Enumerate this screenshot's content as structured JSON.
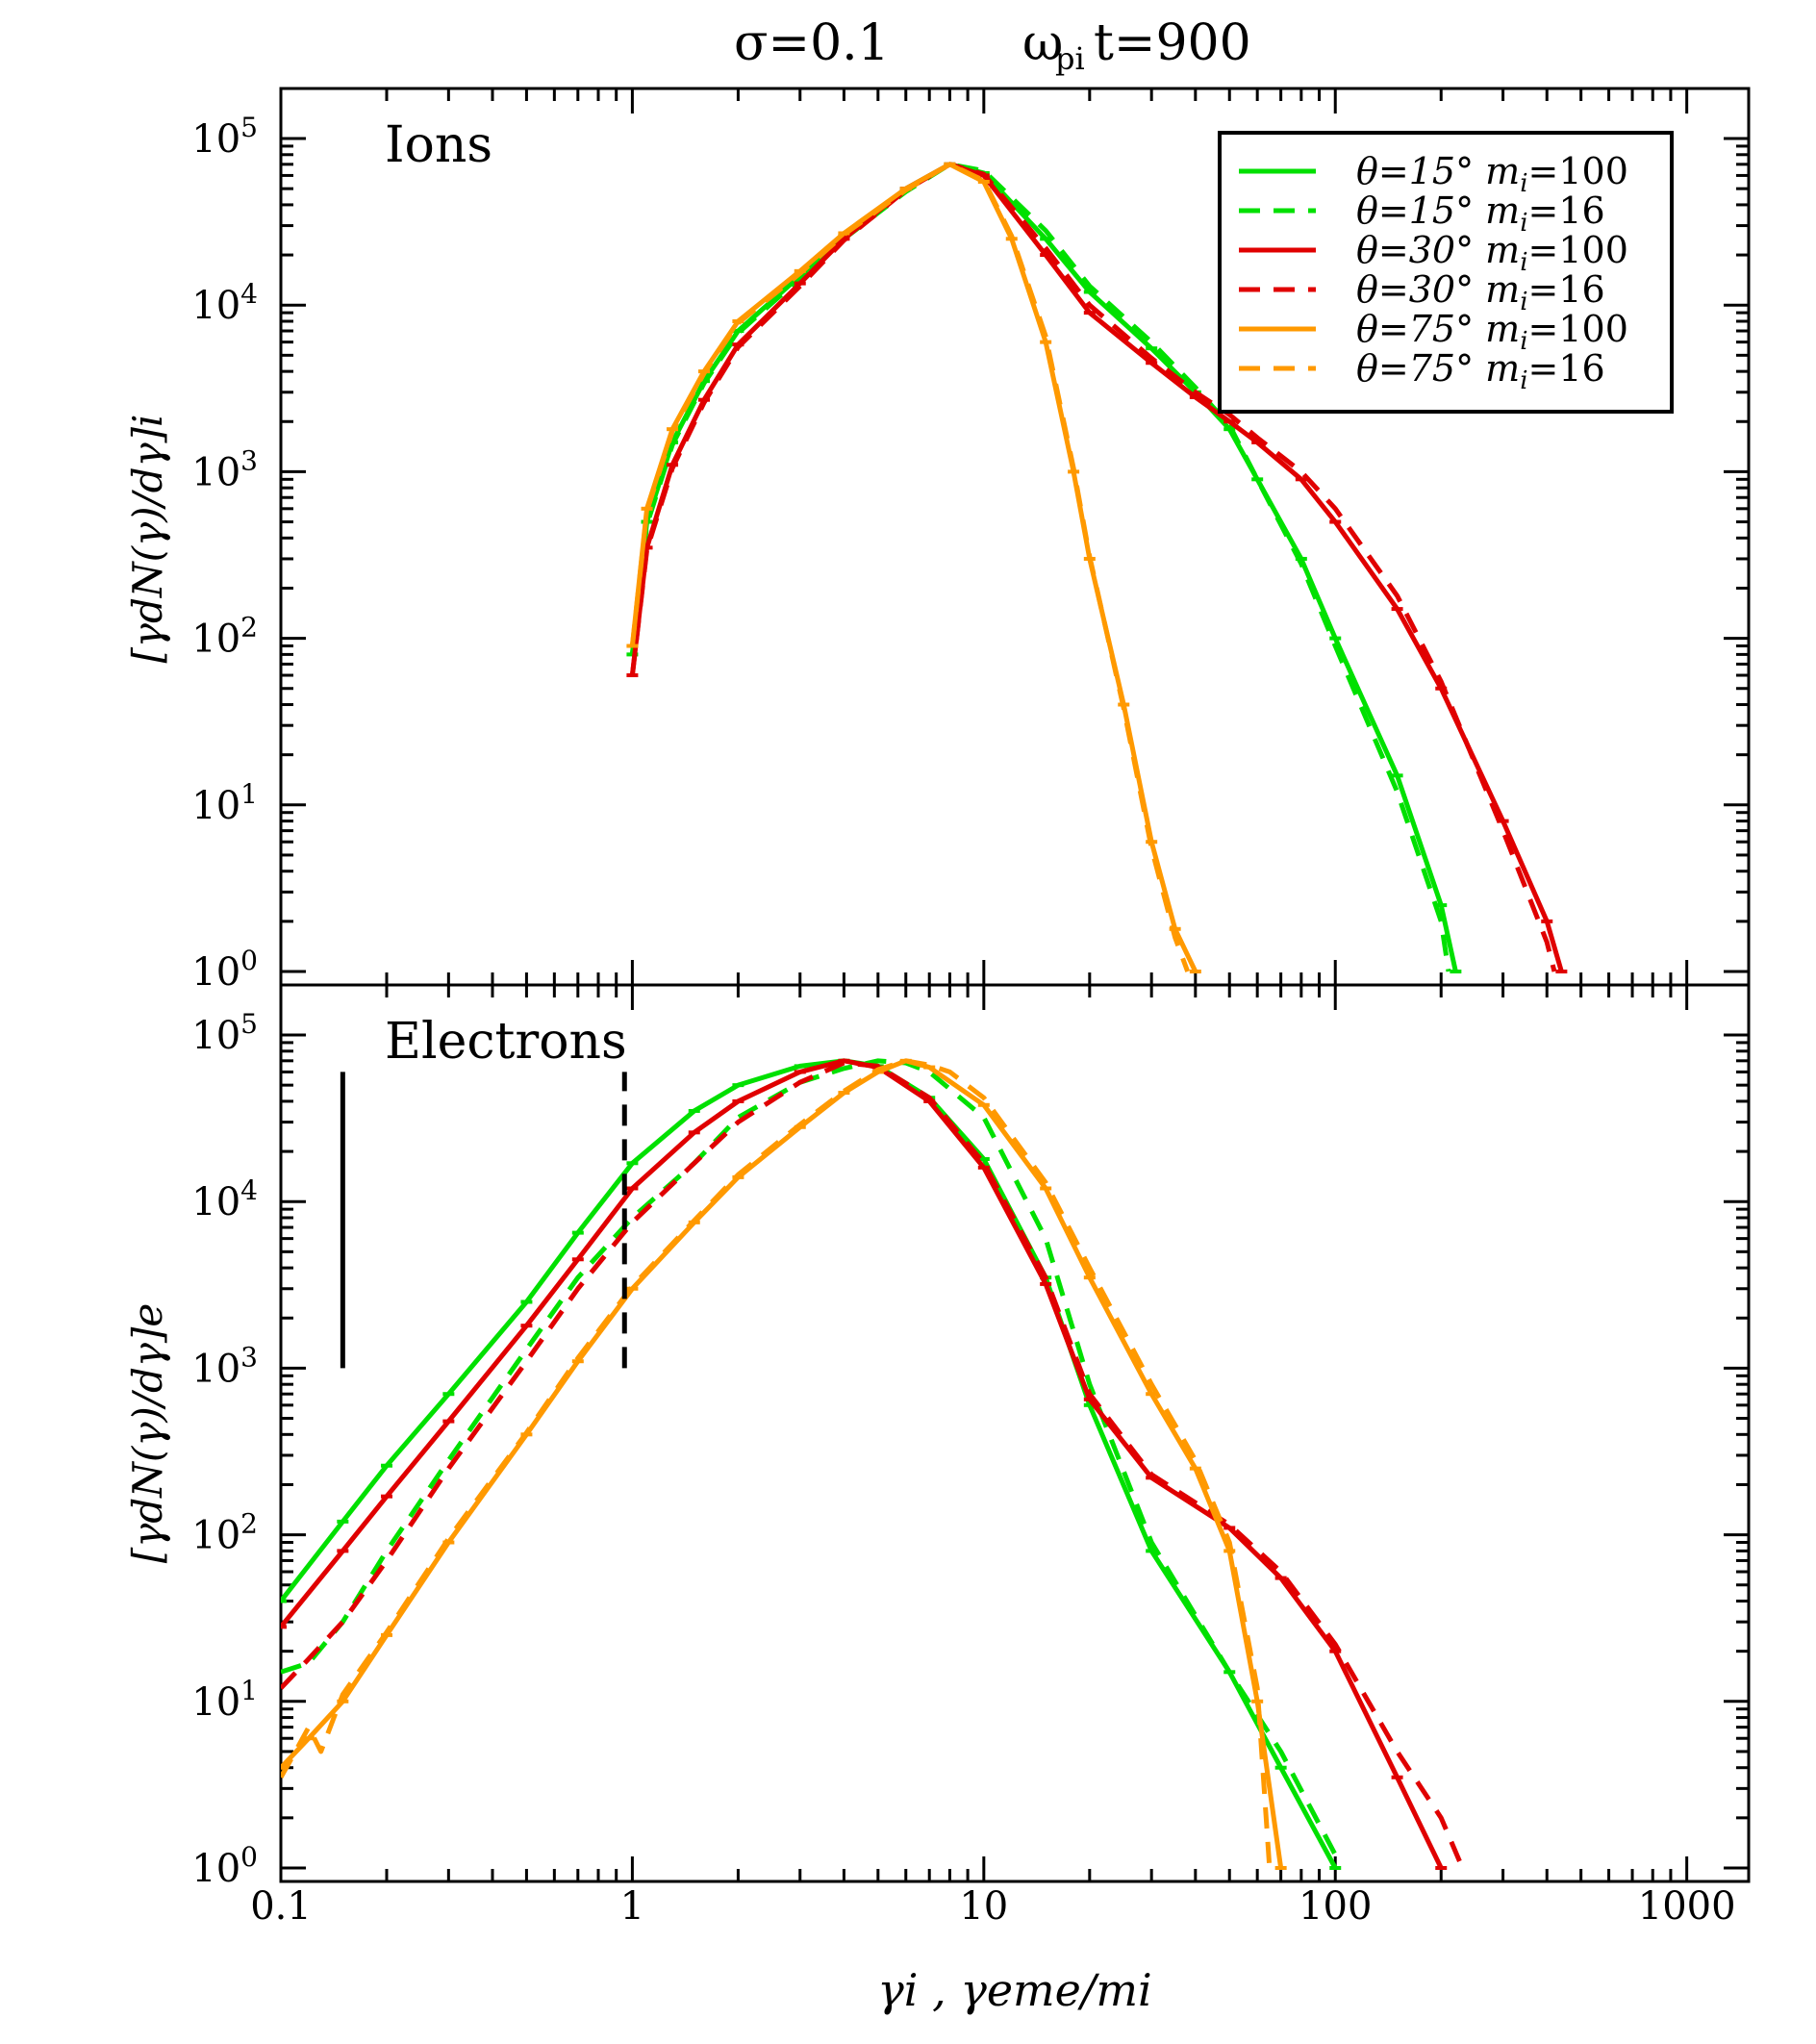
{
  "title": {
    "sigma": "σ=0.1",
    "time_symbol": "ω",
    "time_sub": "pi",
    "time_rest": "t=900"
  },
  "chart_data": [
    {
      "type": "line",
      "panel": "top",
      "label": "Ions",
      "ylabel": "[γdN(γ)/dγ]i",
      "xscale": "log",
      "yscale": "log",
      "xlim": [
        0.1,
        1500
      ],
      "ylim": [
        1,
        200000
      ],
      "series": [
        {
          "name": "θ=15° mi=100",
          "color": "#00e000",
          "dash": "solid",
          "x": [
            1,
            1.1,
            1.3,
            1.6,
            2,
            3,
            4,
            6,
            8,
            10,
            15,
            20,
            30,
            40,
            50,
            60,
            80,
            100,
            150,
            200,
            220
          ],
          "y": [
            80,
            500,
            1500,
            3500,
            7000,
            15000,
            26000,
            50000,
            70000,
            62000,
            25000,
            12000,
            5500,
            3000,
            1800,
            900,
            300,
            100,
            15,
            2.5,
            1
          ]
        },
        {
          "name": "θ=15° mi=16",
          "color": "#00e000",
          "dash": "dashed",
          "x": [
            1,
            1.1,
            1.3,
            1.6,
            2,
            3,
            4,
            6,
            8,
            10,
            15,
            20,
            30,
            40,
            50,
            60,
            80,
            100,
            150,
            200,
            210
          ],
          "y": [
            80,
            480,
            1450,
            3400,
            6800,
            14500,
            25000,
            48000,
            70000,
            64000,
            28000,
            13000,
            6000,
            3200,
            1900,
            900,
            280,
            90,
            12,
            2,
            1
          ]
        },
        {
          "name": "θ=30° mi=100",
          "color": "#e00000",
          "dash": "solid",
          "x": [
            1,
            1.1,
            1.3,
            1.6,
            2,
            3,
            4,
            6,
            8,
            10,
            15,
            20,
            30,
            40,
            50,
            60,
            80,
            100,
            150,
            200,
            300,
            400,
            440
          ],
          "y": [
            60,
            350,
            1100,
            2700,
            5800,
            13500,
            25000,
            50000,
            70000,
            60000,
            20000,
            9000,
            4500,
            2800,
            2000,
            1500,
            900,
            500,
            150,
            50,
            8,
            2,
            1
          ]
        },
        {
          "name": "θ=30° mi=16",
          "color": "#e00000",
          "dash": "dashed",
          "x": [
            1,
            1.1,
            1.3,
            1.6,
            2,
            3,
            4,
            6,
            8,
            10,
            15,
            20,
            30,
            40,
            50,
            60,
            80,
            100,
            150,
            200,
            300,
            400,
            420
          ],
          "y": [
            60,
            340,
            1050,
            2600,
            5600,
            13000,
            24500,
            49000,
            70000,
            61000,
            22000,
            10000,
            4800,
            3000,
            2200,
            1600,
            1000,
            600,
            180,
            55,
            7,
            1.5,
            1
          ]
        },
        {
          "name": "θ=75° mi=100",
          "color": "#ff9900",
          "dash": "solid",
          "x": [
            1,
            1.1,
            1.3,
            1.6,
            2,
            3,
            4,
            6,
            8,
            10,
            12,
            15,
            18,
            20,
            25,
            30,
            35,
            40
          ],
          "y": [
            90,
            600,
            1800,
            4000,
            8000,
            16000,
            27000,
            50000,
            70000,
            55000,
            25000,
            6000,
            1000,
            300,
            40,
            6,
            1.8,
            1
          ]
        },
        {
          "name": "θ=75° mi=16",
          "color": "#ff9900",
          "dash": "dashed",
          "x": [
            1,
            1.1,
            1.3,
            1.6,
            2,
            3,
            4,
            6,
            8,
            10,
            12,
            15,
            18,
            20,
            25,
            30,
            35,
            38
          ],
          "y": [
            90,
            580,
            1750,
            3900,
            7800,
            15500,
            26500,
            49000,
            70000,
            56000,
            26000,
            6500,
            1050,
            310,
            38,
            5.5,
            1.6,
            1
          ]
        }
      ],
      "legend": [
        {
          "theta": "θ=15°",
          "m": "m",
          "sub": "i",
          "val": "=100",
          "color": "#00e000",
          "dash": "solid"
        },
        {
          "theta": "θ=15°",
          "m": "m",
          "sub": "i",
          "val": "=16",
          "color": "#00e000",
          "dash": "dashed"
        },
        {
          "theta": "θ=30°",
          "m": "m",
          "sub": "i",
          "val": "=100",
          "color": "#e00000",
          "dash": "solid"
        },
        {
          "theta": "θ=30°",
          "m": "m",
          "sub": "i",
          "val": "=16",
          "color": "#e00000",
          "dash": "dashed"
        },
        {
          "theta": "θ=75°",
          "m": "m",
          "sub": "i",
          "val": "=100",
          "color": "#ff9900",
          "dash": "solid"
        },
        {
          "theta": "θ=75°",
          "m": "m",
          "sub": "i",
          "val": "=16",
          "color": "#ff9900",
          "dash": "dashed"
        }
      ]
    },
    {
      "type": "line",
      "panel": "bottom",
      "label": "Electrons",
      "ylabel": "[γdN(γ)/dγ]e",
      "xlabel": "γi , γeme/mi",
      "xscale": "log",
      "yscale": "log",
      "xlim": [
        0.1,
        1500
      ],
      "ylim": [
        1,
        200000
      ],
      "vertical_markers": [
        {
          "x": 0.15,
          "y_from": 1000,
          "y_to": 60000,
          "style": "solid"
        },
        {
          "x": 0.95,
          "y_from": 1000,
          "y_to": 60000,
          "style": "dashed"
        }
      ],
      "series": [
        {
          "name": "θ=15° mi=100",
          "color": "#00e000",
          "dash": "solid",
          "x": [
            0.1,
            0.15,
            0.2,
            0.3,
            0.5,
            0.7,
            1,
            1.5,
            2,
            3,
            4,
            5,
            7,
            10,
            15,
            20,
            30,
            50,
            70,
            100
          ],
          "y": [
            40,
            120,
            260,
            700,
            2500,
            6500,
            17000,
            35000,
            50000,
            65000,
            70000,
            65000,
            42000,
            18000,
            3500,
            600,
            80,
            15,
            4,
            1
          ]
        },
        {
          "name": "θ=15° mi=16",
          "color": "#00e000",
          "dash": "dashed",
          "x": [
            0.1,
            0.12,
            0.15,
            0.2,
            0.3,
            0.5,
            0.7,
            1,
            1.5,
            2,
            3,
            4,
            5,
            6,
            7,
            10,
            15,
            20,
            30,
            50,
            70,
            100
          ],
          "y": [
            15,
            17,
            30,
            80,
            280,
            1300,
            3500,
            8000,
            17000,
            32000,
            52000,
            63000,
            70000,
            68000,
            60000,
            32000,
            6000,
            800,
            90,
            15,
            5,
            1.2
          ]
        },
        {
          "name": "θ=30° mi=100",
          "color": "#e00000",
          "dash": "solid",
          "x": [
            0.1,
            0.15,
            0.2,
            0.3,
            0.5,
            0.7,
            1,
            1.5,
            2,
            3,
            4,
            5,
            7,
            10,
            15,
            20,
            30,
            50,
            70,
            100,
            150,
            200
          ],
          "y": [
            28,
            80,
            170,
            480,
            1800,
            4500,
            12000,
            26000,
            40000,
            60000,
            70000,
            64000,
            40000,
            16000,
            3200,
            650,
            220,
            110,
            55,
            20,
            3.5,
            1
          ]
        },
        {
          "name": "θ=30° mi=16",
          "color": "#e00000",
          "dash": "dashed",
          "x": [
            0.1,
            0.12,
            0.15,
            0.2,
            0.3,
            0.5,
            0.7,
            1,
            1.5,
            2,
            3,
            4,
            5,
            7,
            10,
            15,
            20,
            30,
            50,
            70,
            100,
            150,
            200,
            230
          ],
          "y": [
            12,
            18,
            30,
            70,
            250,
            1100,
            3000,
            7500,
            17000,
            30000,
            52000,
            68000,
            65000,
            42000,
            17000,
            3500,
            700,
            230,
            115,
            60,
            22,
            5,
            2,
            1
          ]
        },
        {
          "name": "θ=75° mi=100",
          "color": "#ff9900",
          "dash": "solid",
          "x": [
            0.1,
            0.12,
            0.15,
            0.2,
            0.3,
            0.5,
            0.7,
            1,
            1.5,
            2,
            3,
            4,
            5,
            6,
            7,
            10,
            15,
            20,
            30,
            40,
            50,
            60,
            70
          ],
          "y": [
            4,
            6,
            10,
            25,
            90,
            400,
            1100,
            3000,
            7500,
            14000,
            28000,
            45000,
            60000,
            70000,
            64000,
            38000,
            12000,
            3500,
            700,
            250,
            80,
            10,
            1
          ]
        },
        {
          "name": "θ=75° mi=16",
          "color": "#ff9900",
          "dash": "dashed",
          "x": [
            0.1,
            0.11,
            0.12,
            0.13,
            0.15,
            0.2,
            0.3,
            0.5,
            0.7,
            1,
            1.5,
            2,
            3,
            4,
            5,
            6,
            7,
            8,
            10,
            15,
            20,
            30,
            40,
            50,
            60,
            65
          ],
          "y": [
            3.5,
            5,
            7,
            5,
            11,
            26,
            95,
            410,
            1150,
            3100,
            7700,
            14500,
            29000,
            46000,
            62000,
            70000,
            66000,
            60000,
            42000,
            13000,
            4000,
            800,
            280,
            90,
            12,
            1
          ]
        }
      ]
    }
  ],
  "x_ticks": [
    {
      "value": 0.1,
      "label": "0.1"
    },
    {
      "value": 1,
      "label": "1"
    },
    {
      "value": 10,
      "label": "10"
    },
    {
      "value": 100,
      "label": "100"
    },
    {
      "value": 1000,
      "label": "1000"
    }
  ],
  "y_ticks": [
    {
      "value": 1,
      "base": "10",
      "exp": "0"
    },
    {
      "value": 10,
      "base": "10",
      "exp": "1"
    },
    {
      "value": 100,
      "base": "10",
      "exp": "2"
    },
    {
      "value": 1000,
      "base": "10",
      "exp": "3"
    },
    {
      "value": 10000,
      "base": "10",
      "exp": "4"
    },
    {
      "value": 100000,
      "base": "10",
      "exp": "5"
    }
  ]
}
